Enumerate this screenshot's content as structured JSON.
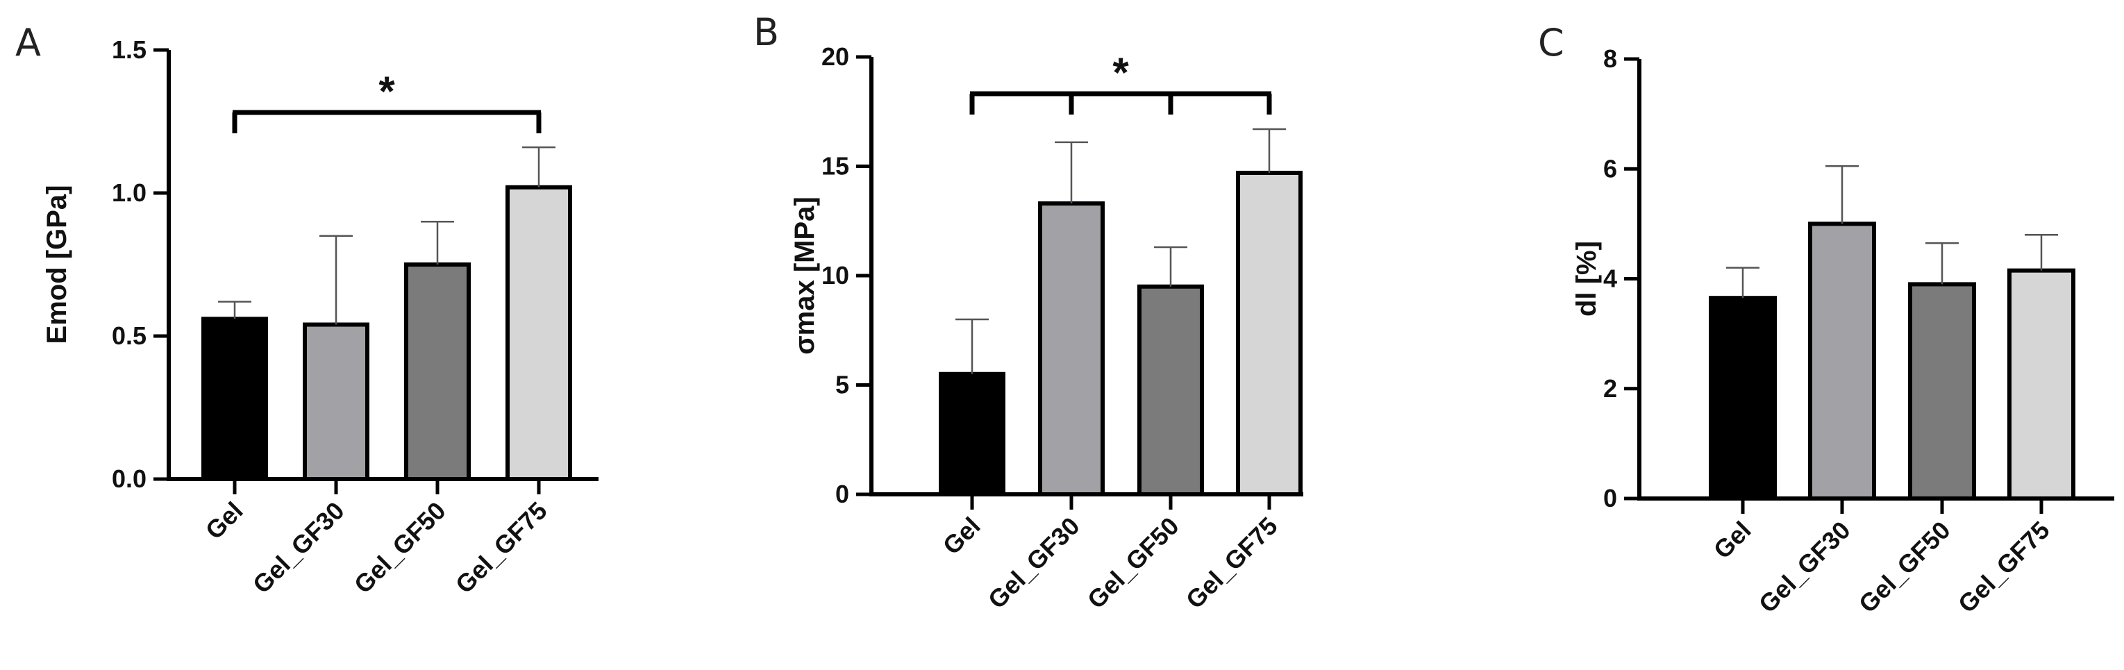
{
  "colors": {
    "Gel": "#000000",
    "Gel_GF30": "#a2a2a6",
    "Gel_GF50": "#7b7b7b",
    "Gel_GF75": "#d6d6d6",
    "outline": "#000000"
  },
  "chart_data": [
    {
      "panel": "A",
      "type": "bar",
      "categories": [
        "Gel",
        "Gel_GF30",
        "Gel_GF50",
        "Gel_GF75"
      ],
      "values": [
        0.56,
        0.54,
        0.75,
        1.02
      ],
      "errors": [
        0.06,
        0.31,
        0.15,
        0.14
      ],
      "ylabel": "Emod [GPa]",
      "ylim": [
        0,
        1.5
      ],
      "yticks": [
        0.0,
        0.5,
        1.0,
        1.5
      ],
      "yticklabels": [
        "0.0",
        "0.5",
        "1.0",
        "1.5"
      ],
      "significance": [
        {
          "from": "Gel",
          "to": "Gel_GF75",
          "label": "*"
        }
      ]
    },
    {
      "panel": "B",
      "type": "bar",
      "categories": [
        "Gel",
        "Gel_GF30",
        "Gel_GF50",
        "Gel_GF75"
      ],
      "values": [
        5.5,
        13.3,
        9.5,
        14.7
      ],
      "errors": [
        2.5,
        2.8,
        1.8,
        2.0
      ],
      "ylabel": "σmax [MPa]",
      "ylim": [
        0,
        20
      ],
      "yticks": [
        0,
        5,
        10,
        15,
        20
      ],
      "yticklabels": [
        "0",
        "5",
        "10",
        "15",
        "20"
      ],
      "significance": [
        {
          "from": "Gel",
          "to": "Gel_GF75",
          "label": "*",
          "drops": [
            "Gel",
            "Gel_GF30",
            "Gel_GF50",
            "Gel_GF75"
          ]
        }
      ]
    },
    {
      "panel": "C",
      "type": "bar",
      "categories": [
        "Gel",
        "Gel_GF30",
        "Gel_GF50",
        "Gel_GF75"
      ],
      "values": [
        3.65,
        5.0,
        3.9,
        4.15
      ],
      "errors": [
        0.55,
        1.05,
        0.75,
        0.65
      ],
      "ylabel": "dl [%]",
      "ylim": [
        0,
        8
      ],
      "yticks": [
        0,
        2,
        4,
        6,
        8
      ],
      "yticklabels": [
        "0",
        "2",
        "4",
        "6",
        "8"
      ],
      "significance": []
    }
  ]
}
